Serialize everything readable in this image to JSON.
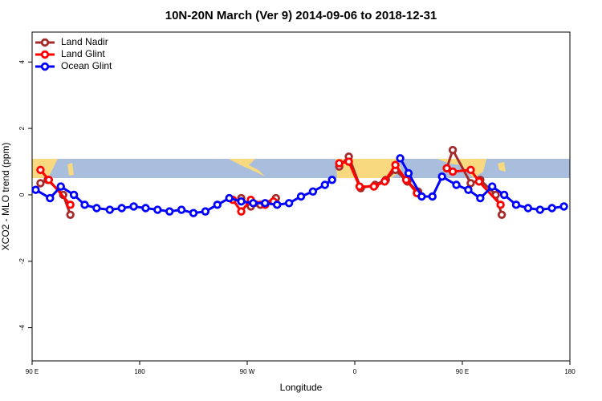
{
  "chart_data": {
    "type": "line",
    "title": "10N-20N March (Ver 9)   2014-09-06 to 2018-12-31",
    "xlabel": "Longitude",
    "ylabel": "XCO2 - MLO trend (ppm)",
    "xlim": [
      90,
      540
    ],
    "ylim": [
      -5,
      4.9
    ],
    "xticks": [
      {
        "value": 90,
        "label": "90 E"
      },
      {
        "value": 180,
        "label": "180"
      },
      {
        "value": 270,
        "label": "90 W"
      },
      {
        "value": 360,
        "label": "0"
      },
      {
        "value": 450,
        "label": "90 E"
      },
      {
        "value": 540,
        "label": "180"
      }
    ],
    "yticks": [
      -4,
      -2,
      0,
      2,
      4
    ],
    "legend": "top-left",
    "series": [
      {
        "name": "Land Nadir",
        "color": "#a52a2a",
        "x": [
          97,
          103,
          116,
          122,
          200,
          265,
          273,
          281,
          294,
          320,
          347,
          355,
          365,
          377,
          386,
          394,
          404,
          413,
          425,
          437,
          442,
          457,
          465,
          478,
          483
        ],
        "values": [
          0.35,
          0.45,
          0.0,
          -0.6,
          null,
          -0.1,
          -0.35,
          -0.3,
          -0.1,
          null,
          0.85,
          1.15,
          0.2,
          0.3,
          0.45,
          0.75,
          0.4,
          0.1,
          null,
          0.8,
          1.35,
          0.35,
          0.45,
          0.0,
          -0.6
        ]
      },
      {
        "name": "Land Glint",
        "color": "#ff0000",
        "x": [
          97,
          104,
          122,
          200,
          258,
          265,
          273,
          285,
          292,
          320,
          347,
          355,
          364,
          376,
          385,
          394,
          403,
          412,
          425,
          437,
          442,
          457,
          464,
          482
        ],
        "values": [
          0.75,
          0.45,
          -0.3,
          null,
          -0.15,
          -0.5,
          -0.15,
          -0.3,
          -0.2,
          null,
          0.95,
          1.0,
          0.25,
          0.25,
          0.4,
          0.9,
          0.45,
          0.05,
          null,
          0.8,
          0.7,
          0.75,
          0.4,
          -0.3
        ]
      },
      {
        "name": "Ocean Glint",
        "color": "#0000ff",
        "x": [
          93,
          105,
          114,
          125,
          134,
          144,
          155,
          165,
          175,
          185,
          195,
          205,
          215,
          225,
          235,
          245,
          255,
          265,
          275,
          285,
          295,
          305,
          315,
          325,
          335,
          341,
          370,
          398,
          405,
          416,
          425,
          433,
          445,
          455,
          465,
          475,
          485,
          495,
          505,
          515,
          525,
          535
        ],
        "values": [
          0.15,
          -0.1,
          0.25,
          0.0,
          -0.3,
          -0.4,
          -0.45,
          -0.4,
          -0.35,
          -0.4,
          -0.45,
          -0.5,
          -0.45,
          -0.55,
          -0.5,
          -0.3,
          -0.1,
          -0.2,
          -0.25,
          -0.25,
          -0.3,
          -0.25,
          -0.05,
          0.1,
          0.3,
          0.45,
          null,
          1.1,
          0.65,
          -0.05,
          -0.05,
          0.55,
          0.3,
          0.15,
          -0.1,
          0.25,
          0.0,
          -0.3,
          -0.4,
          -0.45,
          -0.4,
          -0.35
        ]
      }
    ]
  }
}
